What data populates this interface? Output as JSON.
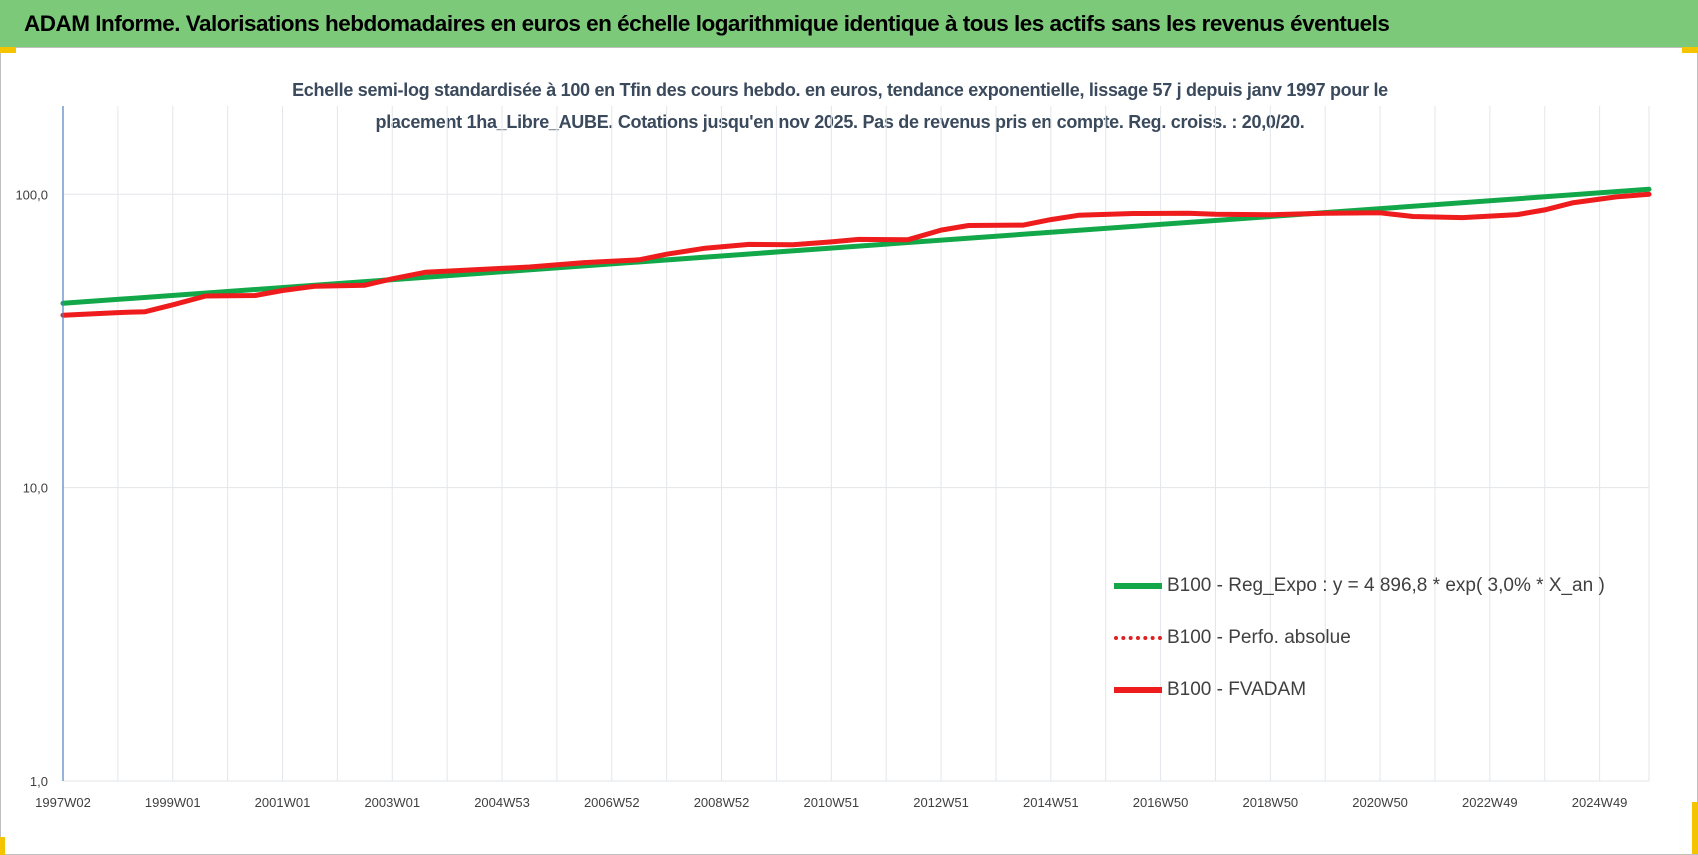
{
  "header": {
    "title": "ADAM Informe. Valorisations hebdomadaires en euros en échelle logarithmique identique à tous les actifs sans les revenus éventuels"
  },
  "colors": {
    "header_bg": "#7dc97a",
    "corner_accent": "#f5c400",
    "reg_expo": "#12a84a",
    "fvadam": "#ee1c1c",
    "perfo_absolue": "#e02020"
  },
  "chart_data": {
    "type": "line",
    "title": "Echelle semi-log standardisée à 100 en Tfin des cours hebdo. en euros, tendance exponentielle, lissage 57 j depuis janv 1997 pour le placement 1ha_Libre_AUBE. Cotations jusqu'en nov 2025. Pas de revenus pris en compte. Reg. croiss. : 20,0/20.",
    "title_lines": [
      "Echelle semi-log standardisée à 100 en Tfin des cours hebdo. en euros, tendance exponentielle, lissage 57 j depuis janv 1997 pour le",
      "placement 1ha_Libre_AUBE. Cotations jusqu'en nov 2025. Pas de revenus pris en compte. Reg. croiss. : 20,0/20."
    ],
    "xlabel": "",
    "ylabel": "",
    "y_scale": "log",
    "ylim": [
      1,
      200
    ],
    "grid": true,
    "legend_position": "bottom-right",
    "x_range": [
      1997.0,
      2025.9
    ],
    "y_ticks": [
      {
        "value": 1,
        "label": "1,0"
      },
      {
        "value": 10,
        "label": "10,0"
      },
      {
        "value": 100,
        "label": "100,0"
      }
    ],
    "x_ticks": [
      {
        "value": 1997.0,
        "label": "1997W02"
      },
      {
        "value": 1999.0,
        "label": "1999W01"
      },
      {
        "value": 2001.0,
        "label": "2001W01"
      },
      {
        "value": 2003.0,
        "label": "2003W01"
      },
      {
        "value": 2005.0,
        "label": "2004W53"
      },
      {
        "value": 2007.0,
        "label": "2006W52"
      },
      {
        "value": 2009.0,
        "label": "2008W52"
      },
      {
        "value": 2011.0,
        "label": "2010W51"
      },
      {
        "value": 2013.0,
        "label": "2012W51"
      },
      {
        "value": 2015.0,
        "label": "2014W51"
      },
      {
        "value": 2017.0,
        "label": "2016W50"
      },
      {
        "value": 2019.0,
        "label": "2018W50"
      },
      {
        "value": 2021.0,
        "label": "2020W50"
      },
      {
        "value": 2023.0,
        "label": "2022W49"
      },
      {
        "value": 2025.0,
        "label": "2024W49"
      }
    ],
    "series": [
      {
        "name": "B100 - Reg_Expo : y = 4 896,8 * exp( 3,0% *  X_an )",
        "style": "solid",
        "color": "#12a84a",
        "points": [
          [
            1997.0,
            42.5
          ],
          [
            2025.9,
            104.0
          ]
        ]
      },
      {
        "name": "B100 - Perfo. absolue",
        "style": "dotted",
        "color": "#e02020",
        "points": [
          [
            1997.0,
            39.0
          ],
          [
            2025.9,
            100.0
          ]
        ]
      },
      {
        "name": "B100 - FVADAM",
        "style": "solid",
        "color": "#ee1c1c",
        "points": [
          [
            1997.0,
            38.7
          ],
          [
            1998.0,
            39.5
          ],
          [
            1998.5,
            39.8
          ],
          [
            1999.0,
            42.0
          ],
          [
            1999.6,
            45.0
          ],
          [
            2000.5,
            45.2
          ],
          [
            2001.0,
            47.0
          ],
          [
            2001.6,
            48.6
          ],
          [
            2002.5,
            49.0
          ],
          [
            2003.0,
            51.5
          ],
          [
            2003.6,
            54.2
          ],
          [
            2004.5,
            55.3
          ],
          [
            2005.5,
            56.5
          ],
          [
            2006.5,
            58.5
          ],
          [
            2007.5,
            59.8
          ],
          [
            2008.0,
            62.5
          ],
          [
            2008.7,
            65.5
          ],
          [
            2009.5,
            67.5
          ],
          [
            2010.3,
            67.3
          ],
          [
            2011.0,
            68.8
          ],
          [
            2011.5,
            70.2
          ],
          [
            2012.4,
            70.0
          ],
          [
            2013.0,
            75.5
          ],
          [
            2013.5,
            78.3
          ],
          [
            2014.5,
            78.5
          ],
          [
            2015.0,
            82.0
          ],
          [
            2015.5,
            84.8
          ],
          [
            2016.5,
            86.0
          ],
          [
            2017.5,
            86.2
          ],
          [
            2018.0,
            85.5
          ],
          [
            2019.0,
            85.2
          ],
          [
            2020.0,
            86.2
          ],
          [
            2021.0,
            86.5
          ],
          [
            2021.6,
            84.0
          ],
          [
            2022.5,
            83.3
          ],
          [
            2023.5,
            85.3
          ],
          [
            2024.0,
            88.5
          ],
          [
            2024.5,
            93.5
          ],
          [
            2025.3,
            98.0
          ],
          [
            2025.9,
            100.0
          ]
        ]
      }
    ]
  }
}
